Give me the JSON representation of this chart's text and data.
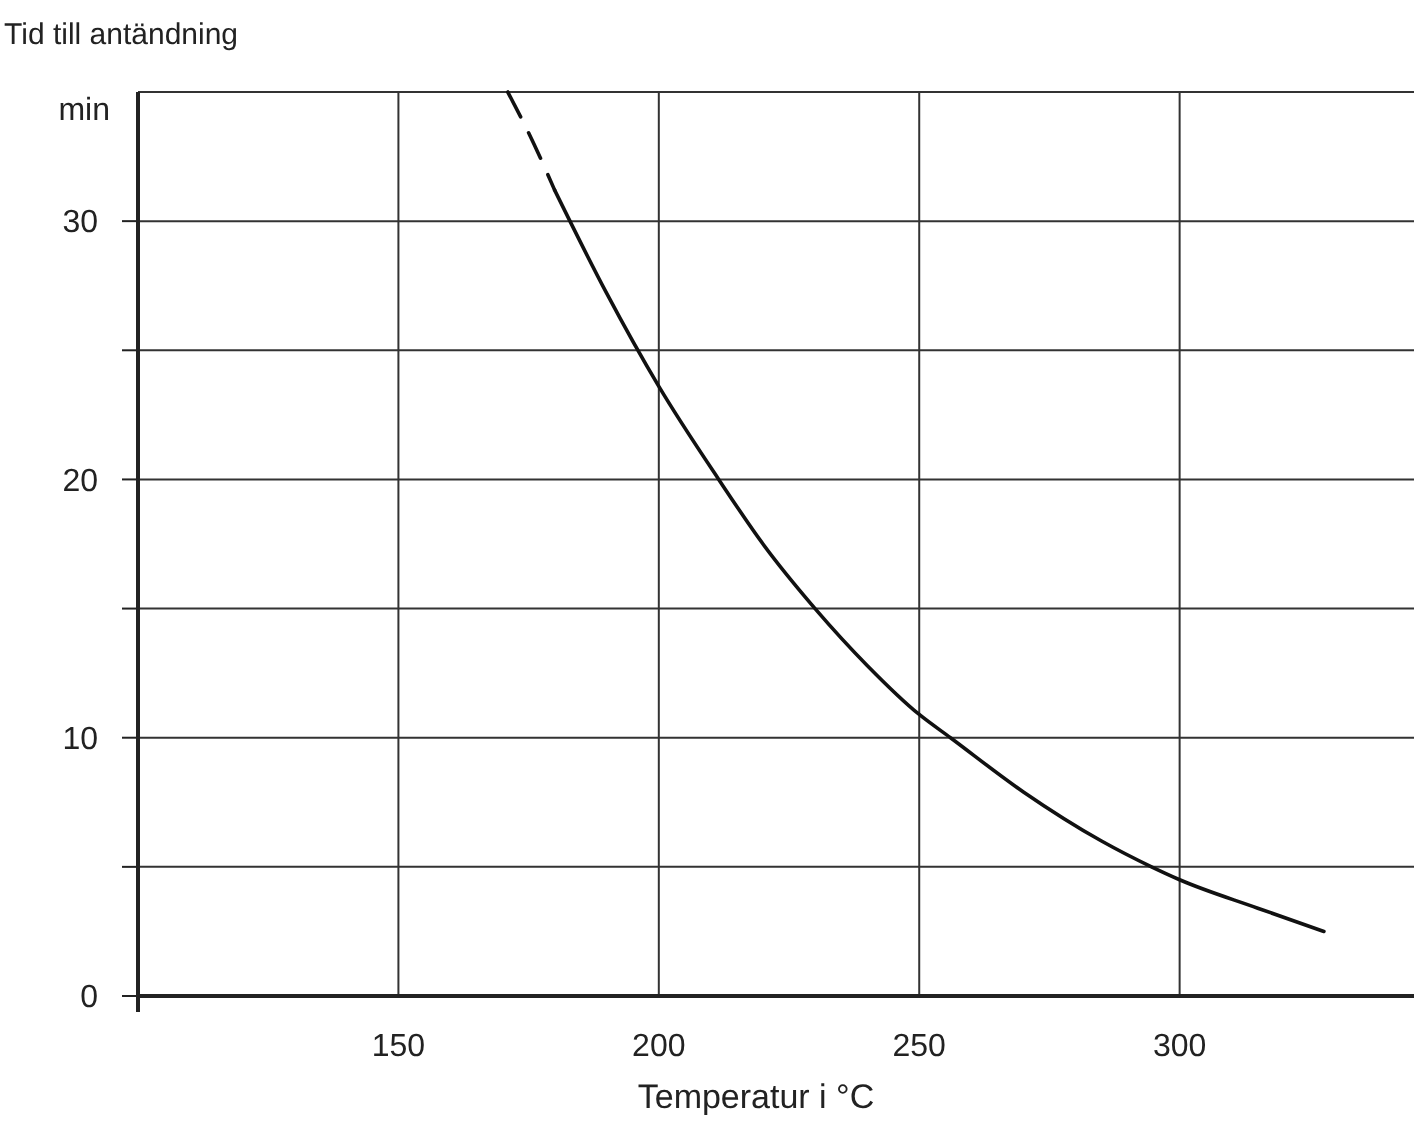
{
  "chart_data": {
    "type": "line",
    "title": "Tid till antändning",
    "ylabel": "min",
    "xlabel": "Temperatur i °C",
    "xlim": [
      100,
      345
    ],
    "xticks": [
      {
        "value": 100,
        "label": null
      },
      150,
      200,
      250,
      300
    ],
    "ylim": [
      0,
      35
    ],
    "yticks": [
      0,
      {
        "value": 5,
        "label": null
      },
      10,
      {
        "value": 15,
        "label": null
      },
      20,
      {
        "value": 25,
        "label": null
      },
      30
    ],
    "grid": true,
    "marker": "none",
    "series": [
      {
        "color": "#111111",
        "line_style": "dashed",
        "x": [
          171,
          176,
          180
        ],
        "values": [
          35,
          33,
          31.2
        ]
      },
      {
        "color": "#111111",
        "line_style": "solid",
        "x": [
          180,
          190,
          200,
          211.5,
          220,
          230,
          240,
          250,
          256,
          270,
          285,
          294.6,
          300,
          315,
          327.7
        ],
        "values": [
          31.2,
          27.2,
          23.6,
          20,
          17.5,
          15,
          12.8,
          10.9,
          10,
          7.9,
          6,
          5,
          4.5,
          3.4,
          2.5
        ]
      }
    ]
  }
}
